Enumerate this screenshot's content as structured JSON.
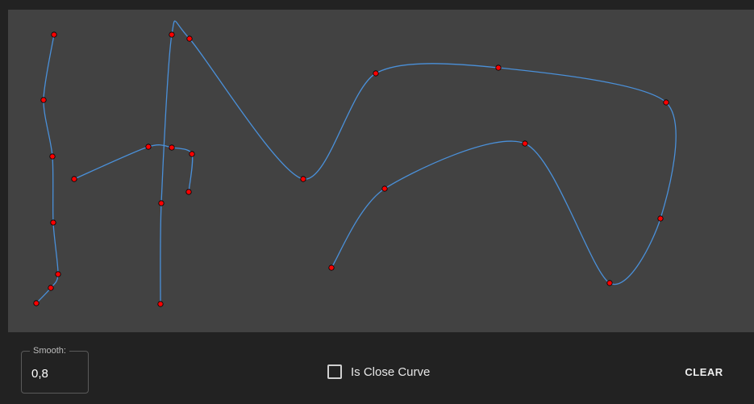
{
  "canvas": {
    "background": "#424242",
    "curve_color": "#4a90d9",
    "point_fill": "#ff0000",
    "point_stroke": "#000000",
    "curves": [
      [
        [
          35,
          364
        ],
        [
          53,
          345
        ],
        [
          62,
          328
        ],
        [
          56,
          264
        ],
        [
          55,
          182
        ],
        [
          44,
          112
        ],
        [
          57,
          31
        ]
      ],
      [
        [
          189,
          365
        ],
        [
          190,
          240
        ],
        [
          203,
          31
        ],
        [
          225,
          36
        ],
        [
          366,
          210
        ],
        [
          456,
          79
        ],
        [
          608,
          72
        ],
        [
          816,
          115
        ],
        [
          809,
          259
        ],
        [
          746,
          339
        ],
        [
          641,
          166
        ],
        [
          467,
          222
        ],
        [
          401,
          320
        ]
      ],
      [
        [
          82,
          210
        ],
        [
          174,
          170
        ],
        [
          203,
          171
        ],
        [
          228,
          179
        ],
        [
          224,
          226
        ]
      ]
    ]
  },
  "controls": {
    "smooth_label": "Smooth:",
    "smooth_value": "0,8",
    "close_curve_label": "Is Close Curve",
    "close_curve_checked": false,
    "clear_label": "CLEAR"
  }
}
